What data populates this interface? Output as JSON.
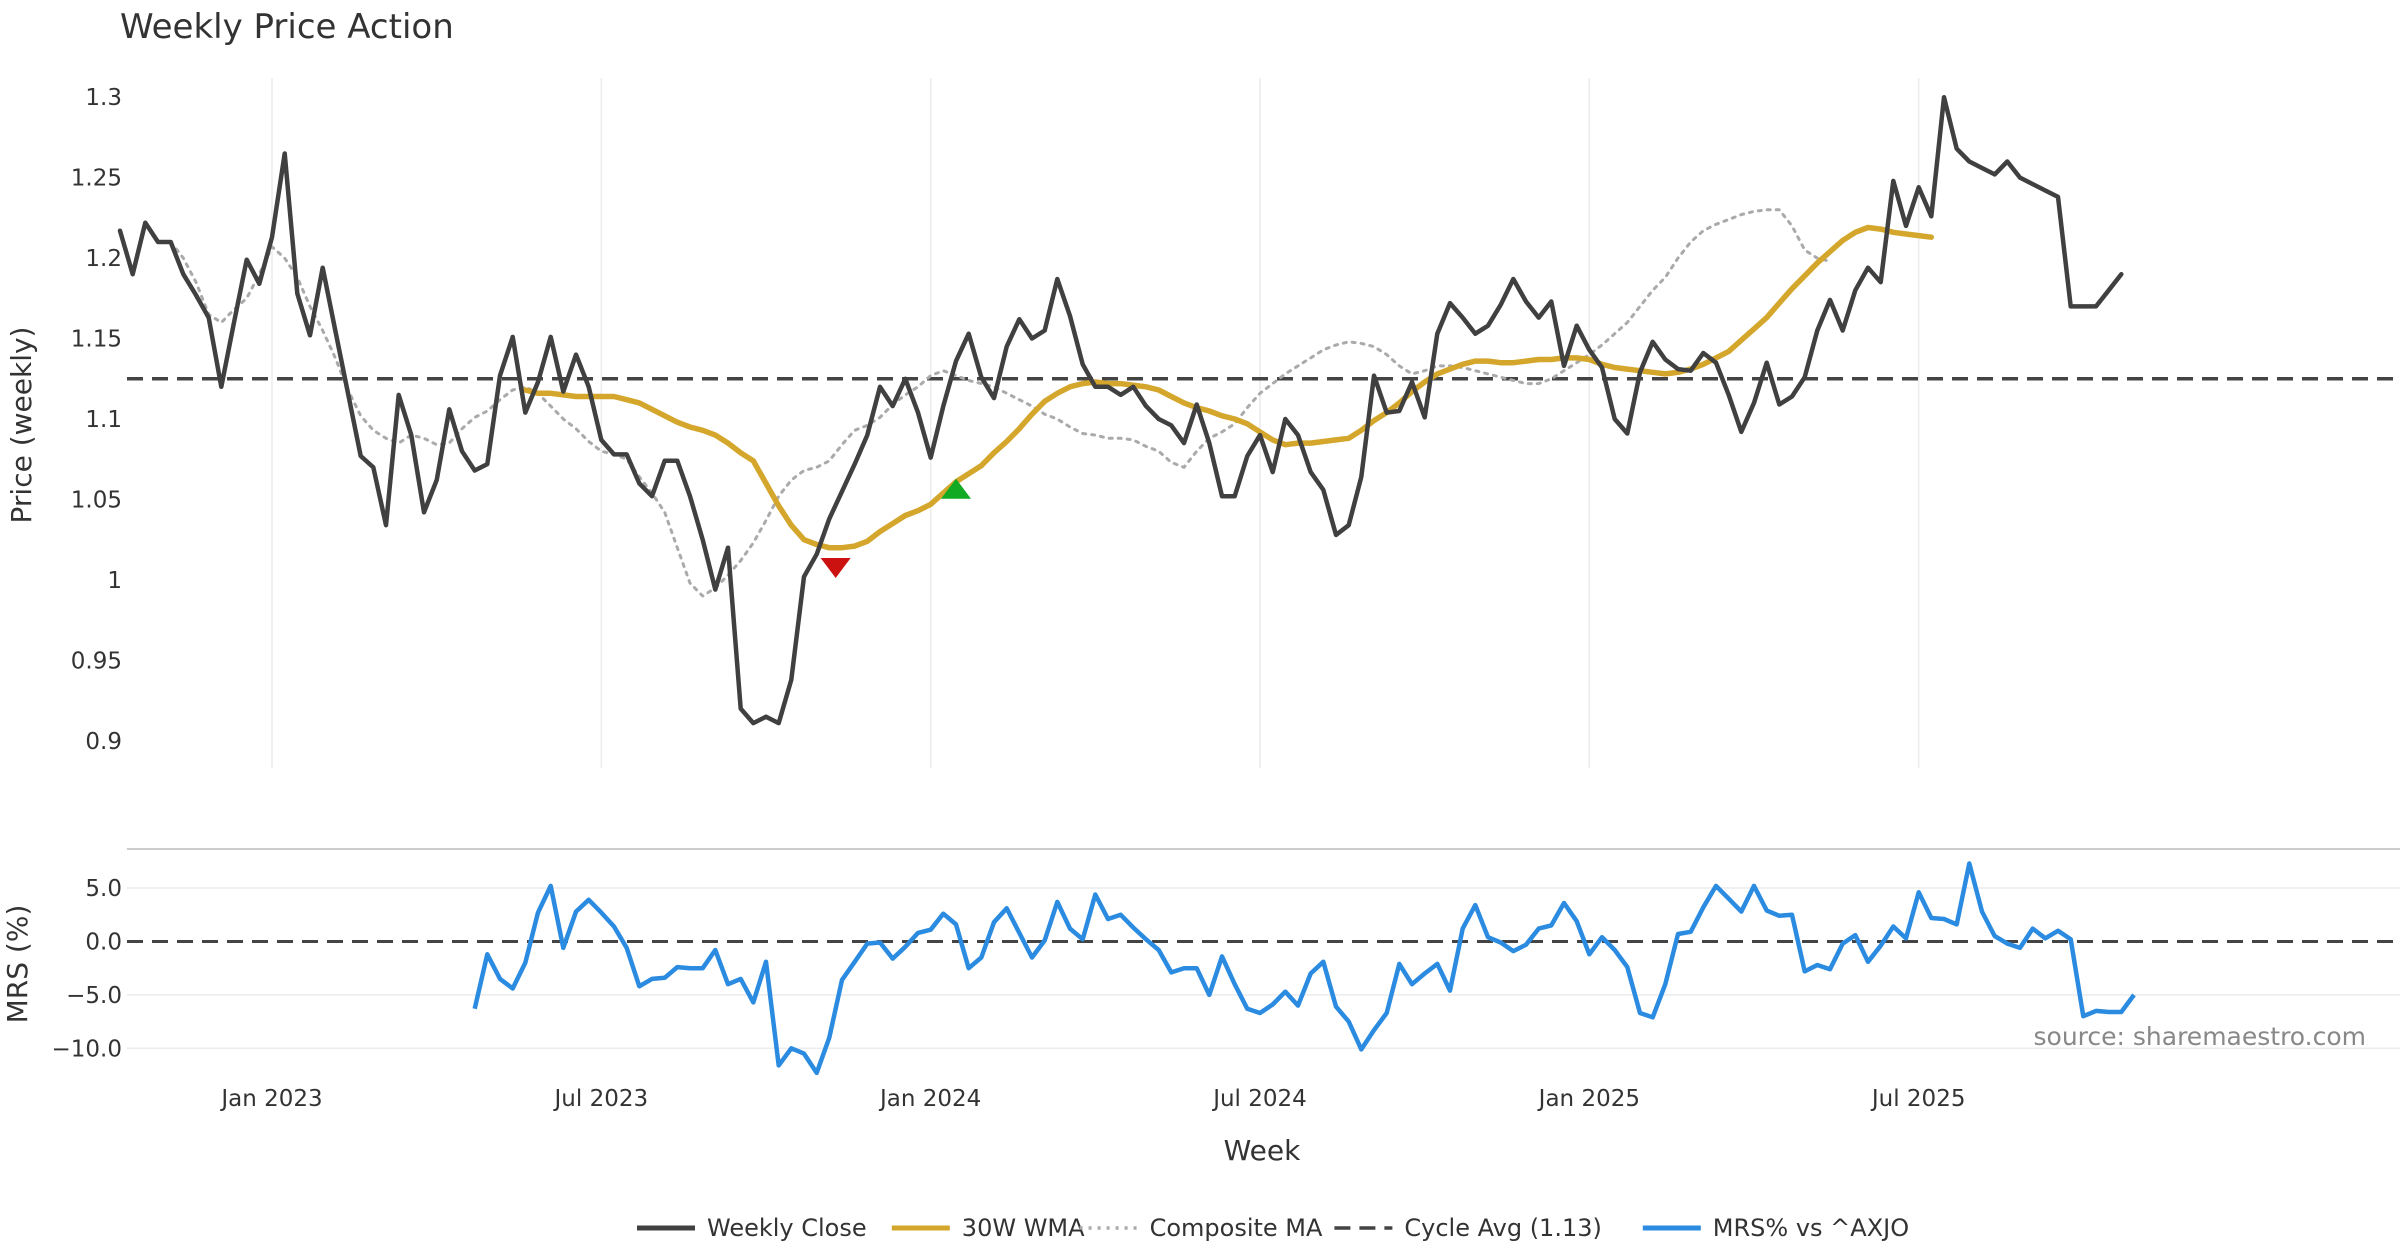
{
  "chart_data": {
    "type": "line",
    "title": "Weekly Price Action",
    "xlabel": "Week",
    "x_ticks": [
      "Jan 2023",
      "Jul 2023",
      "Jan 2024",
      "Jul 2024",
      "Jan 2025",
      "Jul 2025"
    ],
    "x_range_weeks": [
      0,
      180
    ],
    "price_panel": {
      "ylabel": "Price (weekly)",
      "ylim": [
        0.88,
        1.32
      ],
      "y_ticks": [
        "0.9",
        "0.95",
        "1",
        "1.05",
        "1.1",
        "1.15",
        "1.2",
        "1.25",
        "1.3"
      ],
      "y_tick_values": [
        0.9,
        0.95,
        1.0,
        1.05,
        1.1,
        1.15,
        1.2,
        1.25,
        1.3
      ],
      "grid": "vertical",
      "series": [
        {
          "name": "Weekly Close",
          "color": "#404040",
          "style": "solid",
          "start_week": 0,
          "values": [
            1.217,
            1.19,
            1.222,
            1.21,
            1.21,
            1.19,
            1.177,
            1.163,
            1.12,
            1.16,
            1.199,
            1.184,
            1.213,
            1.265,
            1.178,
            1.152,
            1.194,
            1.155,
            1.116,
            1.077,
            1.07,
            1.034,
            1.115,
            1.09,
            1.042,
            1.062,
            1.106,
            1.08,
            1.068,
            1.072,
            1.127,
            1.151,
            1.104,
            1.123,
            1.151,
            1.117,
            1.14,
            1.12,
            1.087,
            1.078,
            1.078,
            1.06,
            1.052,
            1.074,
            1.074,
            1.052,
            1.025,
            0.994,
            1.02,
            0.92,
            0.911,
            0.915,
            0.911,
            0.938,
            1.002,
            1.016,
            1.038,
            1.055,
            1.072,
            1.09,
            1.12,
            1.108,
            1.125,
            1.104,
            1.076,
            1.108,
            1.136,
            1.153,
            1.126,
            1.113,
            1.145,
            1.162,
            1.15,
            1.155,
            1.187,
            1.164,
            1.134,
            1.12,
            1.12,
            1.115,
            1.12,
            1.108,
            1.1,
            1.096,
            1.085,
            1.109,
            1.085,
            1.052,
            1.052,
            1.077,
            1.09,
            1.067,
            1.1,
            1.09,
            1.067,
            1.056,
            1.028,
            1.034,
            1.064,
            1.127,
            1.104,
            1.105,
            1.123,
            1.101,
            1.153,
            1.172,
            1.163,
            1.153,
            1.158,
            1.171,
            1.187,
            1.173,
            1.163,
            1.173,
            1.133,
            1.158,
            1.143,
            1.132,
            1.1,
            1.091,
            1.129,
            1.148,
            1.137,
            1.131,
            1.13,
            1.141,
            1.135,
            1.115,
            1.092,
            1.11,
            1.135,
            1.109,
            1.114,
            1.126,
            1.155,
            1.174,
            1.155,
            1.18,
            1.194,
            1.185,
            1.248,
            1.22,
            1.244,
            1.226,
            1.3,
            1.268,
            1.26,
            1.256,
            1.252,
            1.26,
            1.25,
            1.246,
            1.242,
            1.238,
            1.17,
            1.17,
            1.17,
            1.18,
            1.19
          ]
        },
        {
          "name": "30W WMA",
          "color": "#D4A72C",
          "style": "solid",
          "start_week": 32,
          "values": [
            1.118,
            1.116,
            1.116,
            1.115,
            1.114,
            1.114,
            1.114,
            1.114,
            1.112,
            1.11,
            1.106,
            1.102,
            1.098,
            1.095,
            1.093,
            1.09,
            1.085,
            1.079,
            1.074,
            1.06,
            1.046,
            1.034,
            1.025,
            1.022,
            1.02,
            1.02,
            1.021,
            1.024,
            1.03,
            1.035,
            1.04,
            1.043,
            1.047,
            1.054,
            1.061,
            1.066,
            1.071,
            1.079,
            1.086,
            1.094,
            1.103,
            1.111,
            1.116,
            1.12,
            1.122,
            1.123,
            1.122,
            1.122,
            1.121,
            1.12,
            1.118,
            1.114,
            1.11,
            1.107,
            1.105,
            1.102,
            1.1,
            1.097,
            1.092,
            1.087,
            1.084,
            1.085,
            1.085,
            1.086,
            1.087,
            1.088,
            1.093,
            1.099,
            1.104,
            1.11,
            1.117,
            1.123,
            1.128,
            1.131,
            1.134,
            1.136,
            1.136,
            1.135,
            1.135,
            1.136,
            1.137,
            1.137,
            1.138,
            1.138,
            1.137,
            1.134,
            1.132,
            1.131,
            1.13,
            1.129,
            1.128,
            1.129,
            1.131,
            1.134,
            1.138,
            1.142,
            1.149,
            1.156,
            1.163,
            1.172,
            1.181,
            1.189,
            1.197,
            1.204,
            1.211,
            1.216,
            1.219,
            1.218,
            1.216,
            1.215,
            1.214,
            1.213
          ]
        },
        {
          "name": "Composite MA",
          "color": "#AAAAAA",
          "style": "dotted",
          "start_week": 4,
          "values": [
            1.21,
            1.2,
            1.185,
            1.165,
            1.16,
            1.168,
            1.175,
            1.19,
            1.207,
            1.2,
            1.188,
            1.17,
            1.155,
            1.138,
            1.118,
            1.102,
            1.093,
            1.088,
            1.085,
            1.09,
            1.088,
            1.084,
            1.085,
            1.094,
            1.101,
            1.105,
            1.112,
            1.118,
            1.12,
            1.116,
            1.108,
            1.1,
            1.094,
            1.086,
            1.08,
            1.078,
            1.075,
            1.064,
            1.054,
            1.042,
            1.02,
            0.998,
            0.99,
            0.995,
            1.003,
            1.012,
            1.023,
            1.037,
            1.052,
            1.062,
            1.068,
            1.07,
            1.074,
            1.084,
            1.093,
            1.096,
            1.101,
            1.109,
            1.115,
            1.12,
            1.127,
            1.13,
            1.127,
            1.124,
            1.122,
            1.12,
            1.116,
            1.112,
            1.108,
            1.103,
            1.1,
            1.095,
            1.091,
            1.09,
            1.088,
            1.088,
            1.087,
            1.083,
            1.08,
            1.073,
            1.07,
            1.08,
            1.088,
            1.092,
            1.097,
            1.107,
            1.116,
            1.122,
            1.128,
            1.133,
            1.138,
            1.143,
            1.146,
            1.148,
            1.147,
            1.145,
            1.14,
            1.133,
            1.128,
            1.13,
            1.133,
            1.133,
            1.132,
            1.13,
            1.128,
            1.126,
            1.124,
            1.122,
            1.122,
            1.125,
            1.13,
            1.135,
            1.14,
            1.146,
            1.153,
            1.16,
            1.17,
            1.18,
            1.188,
            1.2,
            1.21,
            1.217,
            1.221,
            1.224,
            1.227,
            1.229,
            1.23,
            1.23,
            1.22,
            1.205,
            1.2,
            1.198
          ]
        },
        {
          "name": "Cycle Avg (1.13)",
          "color": "#444444",
          "style": "dashed",
          "value": 1.125
        }
      ],
      "markers": [
        {
          "name": "sell-signal",
          "shape": "triangle-down",
          "color": "#CC1111",
          "week": 56.5,
          "value": 1.008
        },
        {
          "name": "buy-signal",
          "shape": "triangle-up",
          "color": "#11AA22",
          "week": 66,
          "value": 1.056
        }
      ]
    },
    "mrs_panel": {
      "ylabel": "MRS (%)",
      "ylim": [
        -12.5,
        8.0
      ],
      "y_ticks": [
        "5.0",
        "0.0",
        "−5.0",
        "−10.0"
      ],
      "y_tick_values": [
        5,
        0,
        -5,
        -10
      ],
      "zero_line": 0,
      "series": [
        {
          "name": "MRS% vs ^AXJO",
          "color": "#2B8BE0",
          "style": "solid",
          "start_week": 28,
          "values": [
            -6.3,
            -1.2,
            -3.5,
            -4.4,
            -2.0,
            2.7,
            5.2,
            -0.6,
            2.8,
            3.9,
            2.7,
            1.4,
            -0.6,
            -4.2,
            -3.5,
            -3.4,
            -2.4,
            -2.5,
            -2.5,
            -0.8,
            -4.0,
            -3.5,
            -5.7,
            -1.9,
            -11.6,
            -10.0,
            -10.5,
            -12.3,
            -9.0,
            -3.6,
            -1.9,
            -0.2,
            -0.1,
            -1.6,
            -0.5,
            0.8,
            1.1,
            2.6,
            1.6,
            -2.5,
            -1.5,
            1.8,
            3.1,
            0.8,
            -1.5,
            0.1,
            3.7,
            1.2,
            0.2,
            4.4,
            2.1,
            2.5,
            1.3,
            0.2,
            -0.8,
            -2.9,
            -2.5,
            -2.5,
            -5.0,
            -1.4,
            -4.0,
            -6.3,
            -6.7,
            -5.9,
            -4.7,
            -6.0,
            -3.0,
            -1.9,
            -6.1,
            -7.5,
            -10.1,
            -8.3,
            -6.7,
            -2.1,
            -4.0,
            -3.0,
            -2.1,
            -4.6,
            1.2,
            3.4,
            0.4,
            -0.1,
            -0.9,
            -0.3,
            1.2,
            1.5,
            3.6,
            1.9,
            -1.2,
            0.4,
            -0.8,
            -2.4,
            -6.7,
            -7.1,
            -4.0,
            0.7,
            0.9,
            3.2,
            5.2,
            4.0,
            2.8,
            5.2,
            2.9,
            2.4,
            2.5,
            -2.8,
            -2.2,
            -2.6,
            -0.2,
            0.6,
            -1.9,
            -0.4,
            1.4,
            0.3,
            4.6,
            2.2,
            2.1,
            1.6,
            7.3,
            2.8,
            0.5,
            -0.2,
            -0.6,
            1.2,
            0.3,
            1.0,
            0.2,
            -7.0,
            -6.5,
            -6.6,
            -6.6,
            -5.0
          ]
        },
        {
          "name": "zero-line",
          "color": "#444444",
          "style": "dashed",
          "value": 0
        }
      ]
    },
    "annotations": [
      {
        "text": "source: sharemaestro.com",
        "placement": "bottom-right of MRS panel"
      }
    ],
    "legend": {
      "placement": "bottom-center",
      "entries": [
        {
          "label": "Weekly Close",
          "color": "#404040",
          "style": "solid"
        },
        {
          "label": "30W WMA",
          "color": "#D4A72C",
          "style": "solid"
        },
        {
          "label": "Composite MA",
          "color": "#AAAAAA",
          "style": "dotted"
        },
        {
          "label": "Cycle Avg (1.13)",
          "color": "#444444",
          "style": "dashed"
        },
        {
          "label": "MRS% vs ^AXJO",
          "color": "#2B8BE0",
          "style": "solid"
        }
      ]
    }
  }
}
